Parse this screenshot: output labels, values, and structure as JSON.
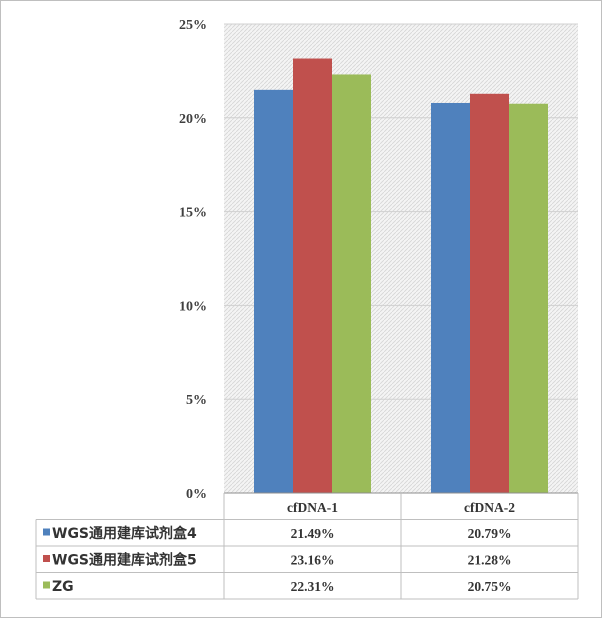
{
  "chart_data": {
    "type": "bar",
    "categories": [
      "cfDNA-1",
      "cfDNA-2"
    ],
    "series": [
      {
        "name": "WGS通用建库试剂盒4",
        "values": [
          21.49,
          20.79
        ],
        "labels": [
          "21.49%",
          "20.79%"
        ],
        "color": "#4f81bd"
      },
      {
        "name": "WGS通用建库试剂盒5",
        "values": [
          23.16,
          21.28
        ],
        "labels": [
          "23.16%",
          "21.28%"
        ],
        "color": "#c0504d"
      },
      {
        "name": "ZG",
        "values": [
          22.31,
          20.75
        ],
        "labels": [
          "22.31%",
          "20.75%"
        ],
        "color": "#9bbb59"
      }
    ],
    "y_ticks": [
      "0%",
      "5%",
      "10%",
      "15%",
      "20%",
      "25%"
    ],
    "ylim": [
      0,
      25
    ],
    "y_unit": "%",
    "legend": "data table below chart",
    "grid": true,
    "background": "light-gray hatched"
  }
}
